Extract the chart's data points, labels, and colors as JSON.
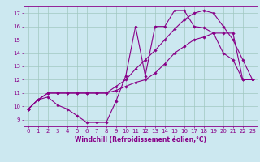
{
  "background_color": "#cce8f0",
  "grid_color": "#a0c8c0",
  "line_color": "#880088",
  "marker": "D",
  "markersize": 1.8,
  "linewidth": 0.8,
  "xlabel": "Windchill (Refroidissement éolien,°C)",
  "xlabel_fontsize": 5.5,
  "tick_fontsize": 5.0,
  "xlim": [
    -0.5,
    23.5
  ],
  "ylim": [
    8.5,
    17.5
  ],
  "yticks": [
    9,
    10,
    11,
    12,
    13,
    14,
    15,
    16,
    17
  ],
  "xticks": [
    0,
    1,
    2,
    3,
    4,
    5,
    6,
    7,
    8,
    9,
    10,
    11,
    12,
    13,
    14,
    15,
    16,
    17,
    18,
    19,
    20,
    21,
    22,
    23
  ],
  "series": [
    [
      9.8,
      10.5,
      10.7,
      10.1,
      9.8,
      9.3,
      8.8,
      8.8,
      8.8,
      10.4,
      12.3,
      16.0,
      12.3,
      16.0,
      16.0,
      17.2,
      17.2,
      16.0,
      15.9,
      15.5,
      14.0,
      13.5,
      12.0,
      12.0
    ],
    [
      9.8,
      10.5,
      11.0,
      11.0,
      11.0,
      11.0,
      11.0,
      11.0,
      11.0,
      11.2,
      11.5,
      11.8,
      12.0,
      12.5,
      13.2,
      14.0,
      14.5,
      15.0,
      15.2,
      15.5,
      15.5,
      15.5,
      12.0,
      12.0
    ],
    [
      9.8,
      10.5,
      11.0,
      11.0,
      11.0,
      11.0,
      11.0,
      11.0,
      11.0,
      11.5,
      12.0,
      12.8,
      13.5,
      14.2,
      15.0,
      15.8,
      16.5,
      17.0,
      17.2,
      17.0,
      16.0,
      15.0,
      13.5,
      12.0
    ]
  ]
}
